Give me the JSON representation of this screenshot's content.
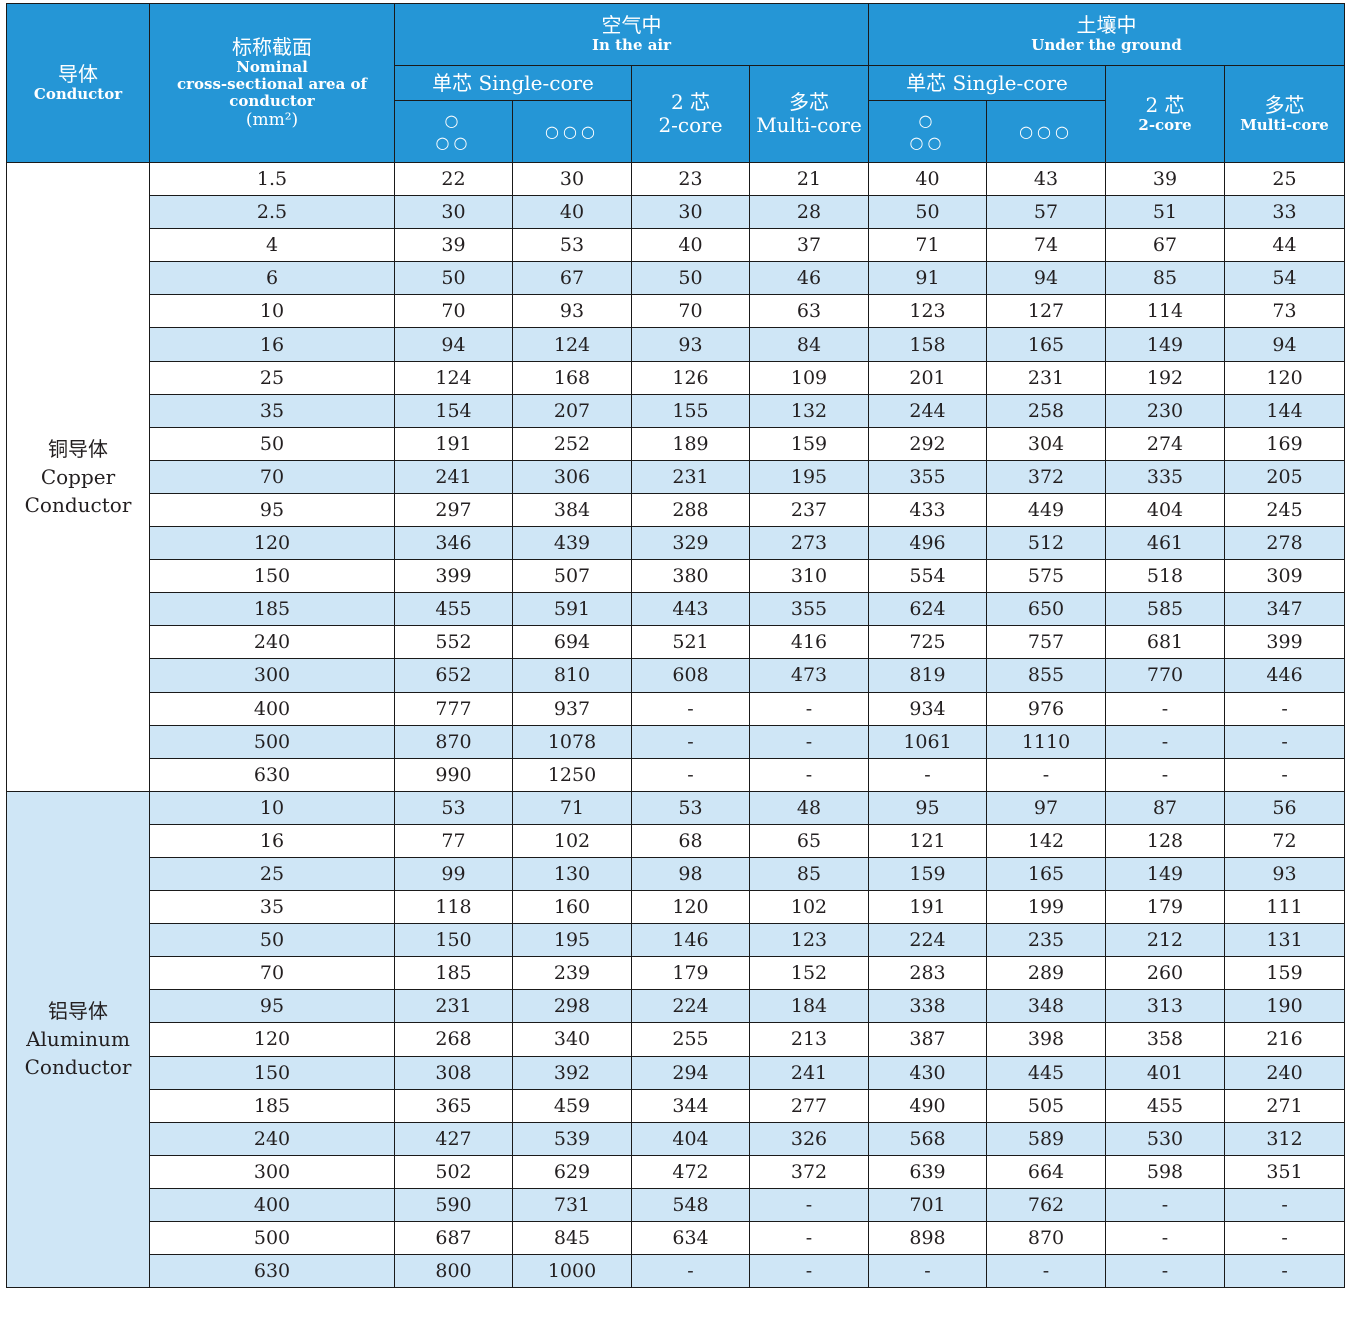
{
  "header": {
    "conductor": {
      "cn": "导体",
      "en": "Conductor"
    },
    "area": {
      "cn": "标称截面",
      "en1": "Nominal",
      "en2": "cross-sectional area of",
      "en3": "conductor",
      "unit": "(mm²)"
    },
    "air": {
      "cn": "空气中",
      "en": "In the air"
    },
    "ground": {
      "cn": "土壤中",
      "en": "Under the ground"
    },
    "single_core": "单芯 Single-core",
    "two_core": {
      "cn": "2 芯",
      "en": "2-core"
    },
    "multi_core": {
      "cn": "多芯",
      "en": "Multi-core"
    },
    "trefoil_top": "○",
    "trefoil_bottom": "○○",
    "flat": "○○○"
  },
  "groups": {
    "copper": {
      "cn": "铜导体",
      "en1": "Copper",
      "en2": "Conductor"
    },
    "aluminum": {
      "cn": "铝导体",
      "en1": "Aluminum",
      "en2": "Conductor"
    }
  },
  "copper_rows": [
    [
      "1.5",
      "22",
      "30",
      "23",
      "21",
      "40",
      "43",
      "39",
      "25"
    ],
    [
      "2.5",
      "30",
      "40",
      "30",
      "28",
      "50",
      "57",
      "51",
      "33"
    ],
    [
      "4",
      "39",
      "53",
      "40",
      "37",
      "71",
      "74",
      "67",
      "44"
    ],
    [
      "6",
      "50",
      "67",
      "50",
      "46",
      "91",
      "94",
      "85",
      "54"
    ],
    [
      "10",
      "70",
      "93",
      "70",
      "63",
      "123",
      "127",
      "114",
      "73"
    ],
    [
      "16",
      "94",
      "124",
      "93",
      "84",
      "158",
      "165",
      "149",
      "94"
    ],
    [
      "25",
      "124",
      "168",
      "126",
      "109",
      "201",
      "231",
      "192",
      "120"
    ],
    [
      "35",
      "154",
      "207",
      "155",
      "132",
      "244",
      "258",
      "230",
      "144"
    ],
    [
      "50",
      "191",
      "252",
      "189",
      "159",
      "292",
      "304",
      "274",
      "169"
    ],
    [
      "70",
      "241",
      "306",
      "231",
      "195",
      "355",
      "372",
      "335",
      "205"
    ],
    [
      "95",
      "297",
      "384",
      "288",
      "237",
      "433",
      "449",
      "404",
      "245"
    ],
    [
      "120",
      "346",
      "439",
      "329",
      "273",
      "496",
      "512",
      "461",
      "278"
    ],
    [
      "150",
      "399",
      "507",
      "380",
      "310",
      "554",
      "575",
      "518",
      "309"
    ],
    [
      "185",
      "455",
      "591",
      "443",
      "355",
      "624",
      "650",
      "585",
      "347"
    ],
    [
      "240",
      "552",
      "694",
      "521",
      "416",
      "725",
      "757",
      "681",
      "399"
    ],
    [
      "300",
      "652",
      "810",
      "608",
      "473",
      "819",
      "855",
      "770",
      "446"
    ],
    [
      "400",
      "777",
      "937",
      "-",
      "-",
      "934",
      "976",
      "-",
      "-"
    ],
    [
      "500",
      "870",
      "1078",
      "-",
      "-",
      "1061",
      "1110",
      "-",
      "-"
    ],
    [
      "630",
      "990",
      "1250",
      "-",
      "-",
      "-",
      "-",
      "-",
      "-"
    ]
  ],
  "aluminum_rows": [
    [
      "10",
      "53",
      "71",
      "53",
      "48",
      "95",
      "97",
      "87",
      "56"
    ],
    [
      "16",
      "77",
      "102",
      "68",
      "65",
      "121",
      "142",
      "128",
      "72"
    ],
    [
      "25",
      "99",
      "130",
      "98",
      "85",
      "159",
      "165",
      "149",
      "93"
    ],
    [
      "35",
      "118",
      "160",
      "120",
      "102",
      "191",
      "199",
      "179",
      "111"
    ],
    [
      "50",
      "150",
      "195",
      "146",
      "123",
      "224",
      "235",
      "212",
      "131"
    ],
    [
      "70",
      "185",
      "239",
      "179",
      "152",
      "283",
      "289",
      "260",
      "159"
    ],
    [
      "95",
      "231",
      "298",
      "224",
      "184",
      "338",
      "348",
      "313",
      "190"
    ],
    [
      "120",
      "268",
      "340",
      "255",
      "213",
      "387",
      "398",
      "358",
      "216"
    ],
    [
      "150",
      "308",
      "392",
      "294",
      "241",
      "430",
      "445",
      "401",
      "240"
    ],
    [
      "185",
      "365",
      "459",
      "344",
      "277",
      "490",
      "505",
      "455",
      "271"
    ],
    [
      "240",
      "427",
      "539",
      "404",
      "326",
      "568",
      "589",
      "530",
      "312"
    ],
    [
      "300",
      "502",
      "629",
      "472",
      "372",
      "639",
      "664",
      "598",
      "351"
    ],
    [
      "400",
      "590",
      "731",
      "548",
      "-",
      "701",
      "762",
      "-",
      "-"
    ],
    [
      "500",
      "687",
      "845",
      "634",
      "-",
      "898",
      "870",
      "-",
      "-"
    ],
    [
      "630",
      "800",
      "1000",
      "-",
      "-",
      "-",
      "-",
      "-",
      "-"
    ]
  ],
  "colors": {
    "header_blue": "#2596d6",
    "stripe_blue": "#cfe6f6",
    "border": "#1a1a1a"
  }
}
